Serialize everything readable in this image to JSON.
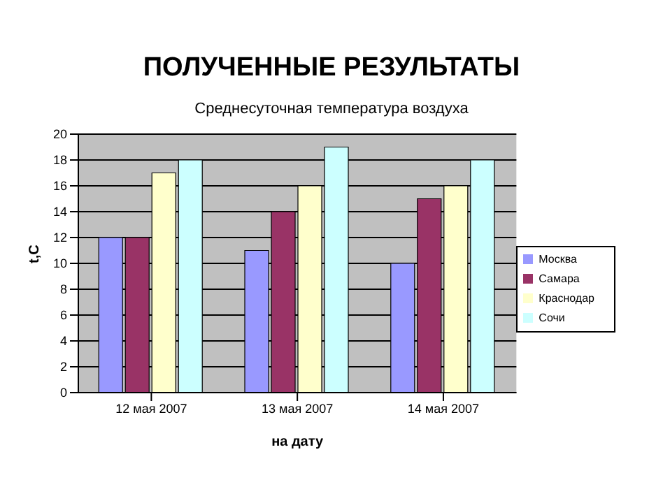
{
  "chart_data": {
    "type": "bar",
    "title": "ПОЛУЧЕННЫЕ РЕЗУЛЬТАТЫ",
    "subtitle": "Среднесуточная температура воздуха",
    "xlabel": "на дату",
    "ylabel": "t,C",
    "categories": [
      "12 мая 2007",
      "13 мая 2007",
      "14 мая 2007"
    ],
    "series": [
      {
        "name": "Москва",
        "color": "#9999ff",
        "values": [
          12,
          11,
          10
        ]
      },
      {
        "name": "Самара",
        "color": "#993366",
        "values": [
          12,
          14,
          15
        ]
      },
      {
        "name": "Краснодар",
        "color": "#ffffcc",
        "values": [
          17,
          16,
          16
        ]
      },
      {
        "name": "Сочи",
        "color": "#ccffff",
        "values": [
          18,
          19,
          18
        ]
      }
    ],
    "ylim": [
      0,
      20
    ],
    "yticks": [
      0,
      2,
      4,
      6,
      8,
      10,
      12,
      14,
      16,
      18,
      20
    ],
    "grid": "y",
    "legend": "right"
  }
}
